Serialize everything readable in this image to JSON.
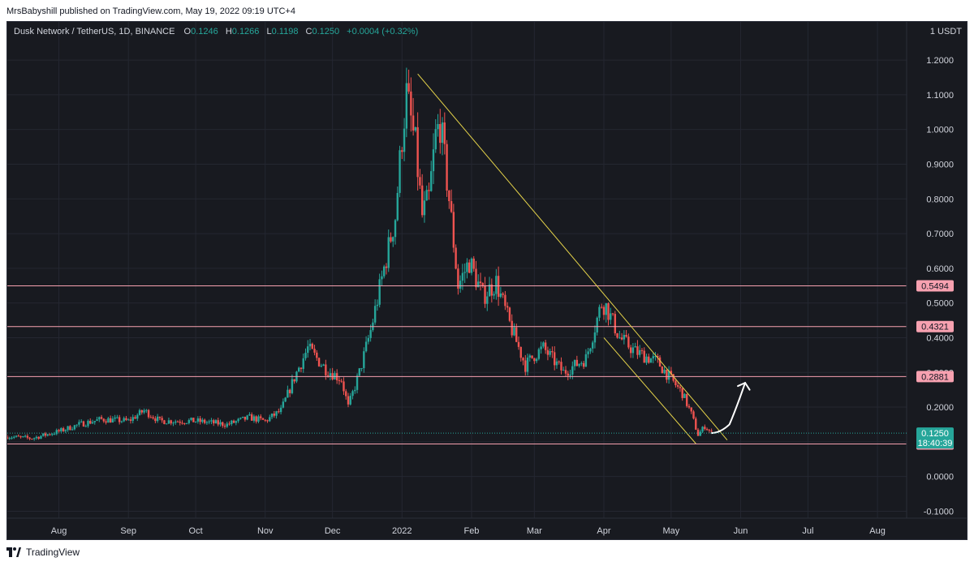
{
  "header": {
    "published_by": "MrsBabyshill published on TradingView.com, May 19, 2022 09:19 UTC+4"
  },
  "legend": {
    "symbol": "Dusk Network / TetherUS, 1D, BINANCE",
    "open_label": "O",
    "open": "0.1246",
    "high_label": "H",
    "high": "0.1266",
    "low_label": "L",
    "low": "0.1198",
    "close_label": "C",
    "close": "0.1250",
    "change": "+0.0004 (+0.32%)"
  },
  "footer": {
    "brand": "TradingView"
  },
  "colors": {
    "background": "#181a20",
    "up": "#26a69a",
    "down": "#ef5350",
    "level_line": "#f7a1b0",
    "trend_line": "#e6d44a",
    "price_badge": "#26a69a",
    "level_badge": "#f7a1b0"
  },
  "chart_data": {
    "type": "candlestick",
    "title": "Dusk Network / TetherUS, 1D, BINANCE",
    "y_unit": "1 USDT",
    "ylim": [
      -0.12,
      1.31
    ],
    "y_ticks": [
      "1.2000",
      "1.1000",
      "1.0000",
      "0.9000",
      "0.8000",
      "0.7000",
      "0.6000",
      "0.5000",
      "0.4000",
      "0.3000",
      "0.2000",
      "0.1000",
      "0.0000",
      "-0.1000"
    ],
    "x_ticks": [
      {
        "label": "Aug",
        "date": "2021-08-01"
      },
      {
        "label": "Sep",
        "date": "2021-09-01"
      },
      {
        "label": "Oct",
        "date": "2021-10-01"
      },
      {
        "label": "Nov",
        "date": "2021-11-01"
      },
      {
        "label": "Dec",
        "date": "2021-12-01"
      },
      {
        "label": "2022",
        "date": "2022-01-01"
      },
      {
        "label": "Feb",
        "date": "2022-02-01"
      },
      {
        "label": "Mar",
        "date": "2022-03-01"
      },
      {
        "label": "Apr",
        "date": "2022-04-01"
      },
      {
        "label": "May",
        "date": "2022-05-01"
      },
      {
        "label": "Jun",
        "date": "2022-06-01"
      },
      {
        "label": "Jul",
        "date": "2022-07-01"
      },
      {
        "label": "Aug",
        "date": "2022-08-01"
      }
    ],
    "x_start": "2021-07-09",
    "x_end": "2022-08-14",
    "horizontal_levels": [
      {
        "value": 0.5494,
        "label": "0.5494"
      },
      {
        "value": 0.4321,
        "label": "0.4321"
      },
      {
        "value": 0.2881,
        "label": "0.2881"
      },
      {
        "value": 0.0938,
        "label": "0.0938"
      }
    ],
    "last_price": {
      "value": 0.125,
      "label": "0.1250",
      "countdown": "18:40:39"
    },
    "trend_lines": [
      {
        "from": {
          "date": "2022-01-08",
          "value": 1.16
        },
        "to": {
          "date": "2022-05-26",
          "value": 0.105
        }
      },
      {
        "from": {
          "date": "2022-04-01",
          "value": 0.4
        },
        "to": {
          "date": "2022-05-12",
          "value": 0.095
        }
      }
    ],
    "projection": [
      {
        "date": "2022-05-19",
        "value": 0.125
      },
      {
        "date": "2022-05-23",
        "value": 0.14
      },
      {
        "date": "2022-05-27",
        "value": 0.15
      },
      {
        "date": "2022-05-31",
        "value": 0.2
      },
      {
        "date": "2022-06-03",
        "value": 0.27
      },
      {
        "date": "2022-06-05",
        "value": 0.25
      }
    ],
    "anchors": [
      [
        "2021-07-09",
        0.115
      ],
      [
        "2021-07-20",
        0.11
      ],
      [
        "2021-08-01",
        0.13
      ],
      [
        "2021-08-10",
        0.15
      ],
      [
        "2021-08-20",
        0.165
      ],
      [
        "2021-09-01",
        0.16
      ],
      [
        "2021-09-08",
        0.19
      ],
      [
        "2021-09-15",
        0.16
      ],
      [
        "2021-10-01",
        0.16
      ],
      [
        "2021-10-15",
        0.15
      ],
      [
        "2021-10-25",
        0.17
      ],
      [
        "2021-11-01",
        0.16
      ],
      [
        "2021-11-08",
        0.19
      ],
      [
        "2021-11-15",
        0.3
      ],
      [
        "2021-11-20",
        0.37
      ],
      [
        "2021-11-28",
        0.31
      ],
      [
        "2021-12-05",
        0.28
      ],
      [
        "2021-12-08",
        0.2
      ],
      [
        "2021-12-13",
        0.3
      ],
      [
        "2021-12-18",
        0.42
      ],
      [
        "2021-12-24",
        0.6
      ],
      [
        "2021-12-29",
        0.75
      ],
      [
        "2022-01-01",
        0.98
      ],
      [
        "2022-01-03",
        1.1
      ],
      [
        "2022-01-07",
        0.95
      ],
      [
        "2022-01-10",
        0.75
      ],
      [
        "2022-01-13",
        0.8
      ],
      [
        "2022-01-16",
        0.98
      ],
      [
        "2022-01-18",
        1.02
      ],
      [
        "2022-01-22",
        0.8
      ],
      [
        "2022-01-26",
        0.55
      ],
      [
        "2022-01-31",
        0.62
      ],
      [
        "2022-02-06",
        0.52
      ],
      [
        "2022-02-12",
        0.56
      ],
      [
        "2022-02-18",
        0.44
      ],
      [
        "2022-02-25",
        0.32
      ],
      [
        "2022-03-01",
        0.35
      ],
      [
        "2022-03-05",
        0.37
      ],
      [
        "2022-03-14",
        0.3
      ],
      [
        "2022-03-24",
        0.34
      ],
      [
        "2022-03-31",
        0.5
      ],
      [
        "2022-04-02",
        0.49
      ],
      [
        "2022-04-08",
        0.4
      ],
      [
        "2022-04-15",
        0.36
      ],
      [
        "2022-04-25",
        0.33
      ],
      [
        "2022-05-01",
        0.28
      ],
      [
        "2022-05-06",
        0.24
      ],
      [
        "2022-05-10",
        0.18
      ],
      [
        "2022-05-13",
        0.12
      ],
      [
        "2022-05-16",
        0.145
      ],
      [
        "2022-05-19",
        0.125
      ]
    ]
  }
}
